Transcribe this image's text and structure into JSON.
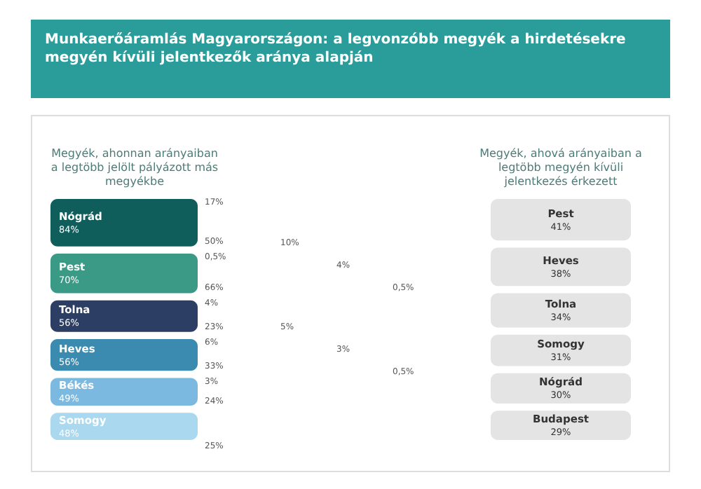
{
  "chart_data": [
    {
      "type": "other",
      "title": "Munkaerőáramlás Magyarországon: a legvonzóbb megyék a hirdetésekre megyén kívüli jelentkezők aránya alapján",
      "xlabel": "Megyék, ahonnan arányaiban a legtöbb jelölt pályázott más megyékbe",
      "categories": [
        "Nógrád",
        "Pest",
        "Tolna",
        "Heves",
        "Békés",
        "Somogy"
      ],
      "values": [
        84,
        70,
        56,
        56,
        49,
        48
      ],
      "value_labels": [
        "84%",
        "70%",
        "56%",
        "56%",
        "49%",
        "48%"
      ],
      "colors": [
        "#0f5e5c",
        "#3a9a86",
        "#2c3e63",
        "#3b8bb0",
        "#7cb9e0",
        "#a9d8ef"
      ],
      "annotations": [
        "17%",
        "50%",
        "0,5%",
        "66%",
        "4%",
        "23%",
        "6%",
        "33%",
        "3%",
        "24%",
        "25%",
        "10%",
        "4%",
        "0,5%",
        "5%",
        "3%",
        "0,5%"
      ]
    },
    {
      "type": "other",
      "xlabel": "Megyék, ahová arányaiban a legtöbb megyén kívüli jelentkezés érkezett",
      "categories": [
        "Pest",
        "Heves",
        "Tolna",
        "Somogy",
        "Nógrád",
        "Budapest"
      ],
      "values": [
        41,
        38,
        34,
        31,
        30,
        29
      ],
      "value_labels": [
        "41%",
        "38%",
        "34%",
        "31%",
        "30%",
        "29%"
      ],
      "colors": [
        "#e4e4e4",
        "#e4e4e4",
        "#e4e4e4",
        "#e4e4e4",
        "#e4e4e4",
        "#e4e4e4"
      ]
    }
  ]
}
